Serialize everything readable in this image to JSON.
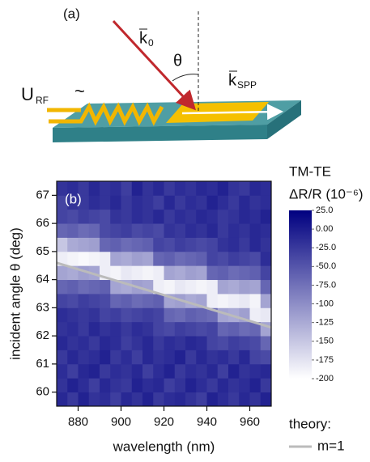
{
  "panel_a": {
    "label": "(a)",
    "vectors": [
      {
        "symbol": "k",
        "subscript": "0"
      },
      {
        "symbol": "k",
        "subscript": "SPP"
      }
    ],
    "angle": "θ",
    "voltage": {
      "symbol": "U",
      "subscript": "RF",
      "suffix": "~"
    }
  },
  "chart_data": {
    "type": "heatmap",
    "panel_label": "(b)",
    "x_label": "wavelength (nm)",
    "y_label": "incident angle θ (deg)",
    "xlim": [
      870,
      970
    ],
    "xticks": [
      880,
      900,
      920,
      940,
      960
    ],
    "ylim": [
      59.5,
      67.5
    ],
    "yticks": [
      60,
      61,
      62,
      63,
      64,
      65,
      66,
      67
    ],
    "xbins": [
      870,
      875,
      880,
      885,
      890,
      895,
      900,
      905,
      910,
      915,
      920,
      925,
      930,
      935,
      940,
      945,
      950,
      955,
      960,
      965,
      970
    ],
    "ybins": [
      59.5,
      60,
      60.5,
      61,
      61.5,
      62,
      62.5,
      63,
      63.5,
      64,
      64.5,
      65,
      65.5,
      66,
      66.5,
      67,
      67.5
    ],
    "z": [
      [
        -10,
        -25,
        -5,
        -20,
        -15,
        -30,
        -10,
        -20,
        -5,
        -25,
        -15,
        -10,
        -20,
        -30,
        -5,
        -15,
        -25,
        -10,
        -20,
        -5
      ],
      [
        -20,
        -5,
        -15,
        -30,
        -10,
        -20,
        -25,
        -5,
        -15,
        -10,
        -30,
        -20,
        -5,
        -15,
        -25,
        -10,
        -20,
        -15,
        -5,
        -25
      ],
      [
        -15,
        -30,
        -10,
        -5,
        -25,
        -15,
        -20,
        -10,
        -30,
        -15,
        -5,
        -25,
        -15,
        -20,
        -10,
        -30,
        -5,
        -20,
        -15,
        -10
      ],
      [
        -25,
        -10,
        -20,
        -15,
        -5,
        -25,
        -15,
        -30,
        -10,
        -20,
        -15,
        -5,
        -25,
        -10,
        -20,
        -15,
        -25,
        -10,
        -35,
        -40
      ],
      [
        -10,
        -20,
        -15,
        -25,
        -10,
        -15,
        -30,
        -20,
        -10,
        -25,
        -15,
        -20,
        -10,
        -15,
        -35,
        -40,
        -30,
        -35,
        -40,
        -65
      ],
      [
        -20,
        -15,
        -25,
        -10,
        -20,
        -15,
        -25,
        -15,
        -20,
        -35,
        -40,
        -30,
        -35,
        -40,
        -35,
        -65,
        -60,
        -70,
        -65,
        -120
      ],
      [
        -15,
        -20,
        -25,
        -20,
        -35,
        -30,
        -40,
        -35,
        -30,
        -35,
        -65,
        -70,
        -60,
        -65,
        -70,
        -120,
        -125,
        -115,
        -185,
        -180
      ],
      [
        -35,
        -40,
        -30,
        -35,
        -40,
        -65,
        -60,
        -70,
        -65,
        -60,
        -120,
        -115,
        -125,
        -120,
        -185,
        -190,
        -185,
        -180,
        -190,
        -120
      ],
      [
        -65,
        -60,
        -70,
        -65,
        -60,
        -120,
        -125,
        -115,
        -120,
        -185,
        -190,
        -180,
        -185,
        -190,
        -185,
        -120,
        -125,
        -115,
        -120,
        -65
      ],
      [
        -120,
        -125,
        -115,
        -120,
        -185,
        -190,
        -180,
        -185,
        -190,
        -185,
        -120,
        -125,
        -115,
        -120,
        -65,
        -60,
        -70,
        -65,
        -60,
        -35
      ],
      [
        -185,
        -190,
        -195,
        -190,
        -185,
        -120,
        -125,
        -115,
        -120,
        -65,
        -60,
        -70,
        -65,
        -60,
        -35,
        -40,
        -30,
        -35,
        -40,
        -15
      ],
      [
        -150,
        -125,
        -120,
        -115,
        -65,
        -60,
        -70,
        -65,
        -60,
        -35,
        -40,
        -30,
        -35,
        -40,
        -35,
        -20,
        -15,
        -25,
        -10,
        -20
      ],
      [
        -65,
        -60,
        -70,
        -65,
        -40,
        -35,
        -30,
        -40,
        -35,
        -40,
        -20,
        -25,
        -15,
        -20,
        -10,
        -25,
        -15,
        -20,
        -10,
        -15
      ],
      [
        -35,
        -40,
        -30,
        -35,
        -40,
        -20,
        -25,
        -15,
        -20,
        -10,
        -25,
        -15,
        -20,
        -10,
        -15,
        -25,
        -20,
        -10,
        -15,
        -5
      ],
      [
        -35,
        -20,
        -25,
        -15,
        -20,
        -10,
        -25,
        -15,
        -20,
        -30,
        -10,
        -25,
        -15,
        -20,
        -5,
        -15,
        -25,
        -10,
        -20,
        -15
      ],
      [
        -20,
        -15,
        -25,
        -10,
        -20,
        -15,
        -30,
        -5,
        -20,
        -10,
        -25,
        -15,
        -20,
        -10,
        -15,
        -5,
        -20,
        -25,
        -10,
        -15
      ]
    ],
    "colorbar": {
      "title": "TM-TE",
      "label": "ΔR/R (10⁻⁶)",
      "zlim": [
        -200,
        25
      ],
      "colors": [
        "#ffffff",
        "#000080"
      ],
      "ticks": [
        {
          "value": 25,
          "label": "25.0"
        },
        {
          "value": 0,
          "label": "0.00"
        },
        {
          "value": -25,
          "label": "-25.0"
        },
        {
          "value": -50,
          "label": "-50.0"
        },
        {
          "value": -75,
          "label": "-75.0"
        },
        -100,
        -125,
        -150,
        -175,
        -200
      ]
    },
    "legend_title": "theory:",
    "series": [
      {
        "name": "m=1",
        "color": "#bbbbbb",
        "x": [
          870,
          970
        ],
        "values": [
          64.6,
          62.3
        ]
      }
    ]
  }
}
